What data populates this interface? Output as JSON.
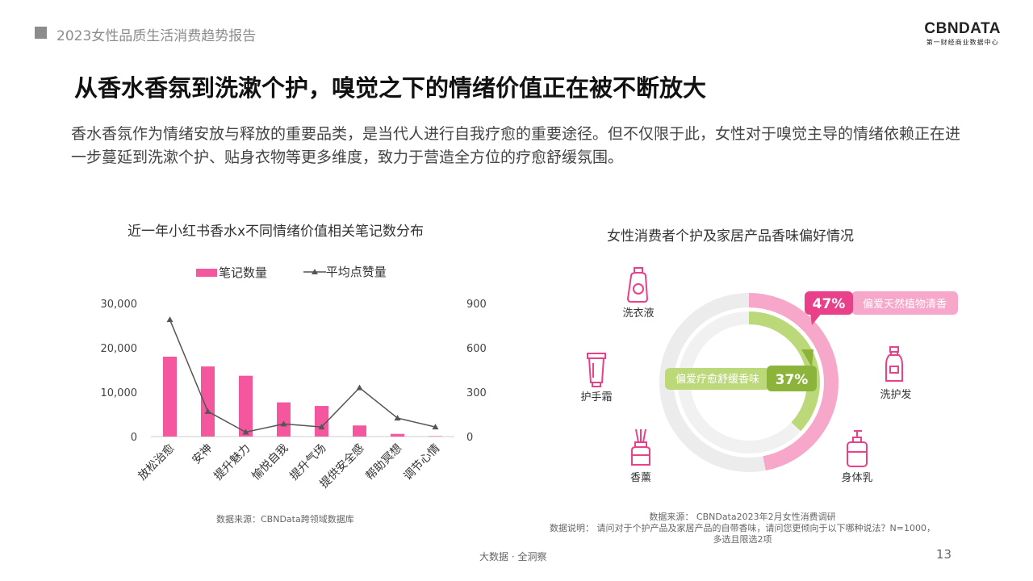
{
  "header": {
    "report_title": "2023女性品质生活消费趋势报告",
    "logo_main": "CBNDATA",
    "logo_sub": "第一财经商业数据中心"
  },
  "headline": "从香水香氛到洗漱个护，嗅觉之下的情绪价值正在被不断放大",
  "description": "香水香氛作为情绪安放与释放的重要品类，是当代人进行自我疗愈的重要途径。但不仅限于此，女性对于嗅觉主导的情绪依赖正在进一步蔓延到洗漱个护、贴身衣物等更多维度，致力于营造全方位的疗愈舒缓氛围。",
  "colors": {
    "bar": "#f5579f",
    "line": "#555555",
    "pink_ring": "#f7a8ca",
    "green_ring": "#bcd97a",
    "dark_pink": "#e8418a",
    "dark_green": "#8cb33a",
    "icon": "#e8418a"
  },
  "chart_data": [
    {
      "type": "bar",
      "title": "近一年小红书香水x不同情绪价值相关笔记数分布",
      "categories": [
        "放松治愈",
        "安神",
        "提升魅力",
        "愉悦自我",
        "提升气场",
        "提供安全感",
        "帮助冥想",
        "调节心情"
      ],
      "series": [
        {
          "name": "笔记数量",
          "type": "bar",
          "axis": "left",
          "values": [
            18000,
            15800,
            13700,
            7700,
            6900,
            2500,
            600,
            100
          ]
        },
        {
          "name": "平均点赞量",
          "type": "line",
          "axis": "right",
          "values": [
            790,
            170,
            30,
            85,
            65,
            330,
            125,
            65
          ]
        }
      ],
      "y_left": {
        "ticks": [
          "0",
          "10,000",
          "20,000",
          "30,000"
        ],
        "ylim": [
          0,
          30000
        ]
      },
      "y_right": {
        "ticks": [
          "0",
          "300",
          "600",
          "900"
        ],
        "ylim": [
          0,
          900
        ]
      },
      "legend_placement": "top",
      "source": "数据来源：CBNData跨领域数据库"
    },
    {
      "type": "pie",
      "title": "女性消费者个护及家居产品香味偏好情况",
      "slices": [
        {
          "label": "偏爱天然植物清香",
          "value": 47,
          "value_text": "47%"
        },
        {
          "label": "偏爱疗愈舒缓香味",
          "value": 37,
          "value_text": "37%"
        }
      ],
      "icons": [
        {
          "label": "洗衣液",
          "icon": "detergent-icon"
        },
        {
          "label": "护手霜",
          "icon": "hand-cream-icon"
        },
        {
          "label": "香薰",
          "icon": "aroma-diffuser-icon"
        },
        {
          "label": "洗护发",
          "icon": "shampoo-icon"
        },
        {
          "label": "身体乳",
          "icon": "body-lotion-icon"
        }
      ],
      "source_lines": [
        "数据来源： CBNData2023年2月女性消费调研",
        "数据说明： 请问对于个护产品及家居产品的自带香味，请问您更倾向于以下哪种说法？N=1000，",
        "多选且限选2项"
      ]
    }
  ],
  "footer": {
    "center": "大数据 · 全洞察",
    "page_number": "13"
  }
}
